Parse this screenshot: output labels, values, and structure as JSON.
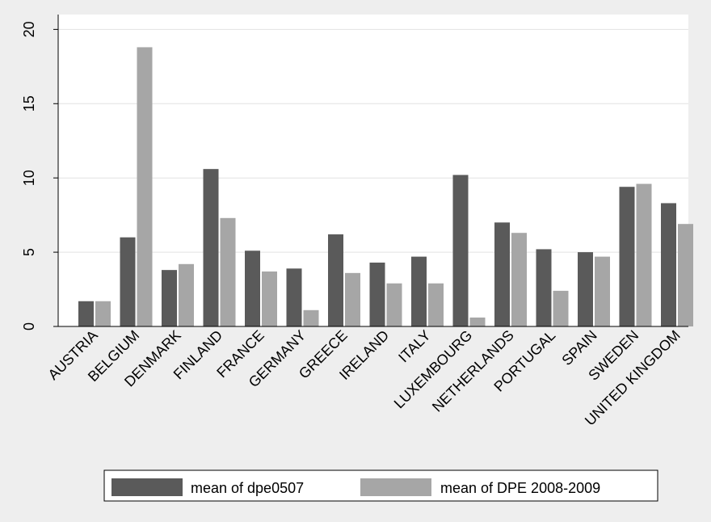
{
  "chart_data": {
    "type": "bar",
    "title": "",
    "xlabel": "",
    "ylabel": "",
    "ylim": [
      0,
      21
    ],
    "yticks": [
      0,
      5,
      10,
      15,
      20
    ],
    "grid": true,
    "legend_placement": "bottom",
    "categories": [
      "AUSTRIA",
      "BELGIUM",
      "DENMARK",
      "FINLAND",
      "FRANCE",
      "GERMANY",
      "GREECE",
      "IRELAND",
      "ITALY",
      "LUXEMBOURG",
      "NETHERLANDS",
      "PORTUGAL",
      "SPAIN",
      "SWEDEN",
      "UNITED KINGDOM"
    ],
    "series": [
      {
        "name": "mean of dpe0507",
        "color": "#5a5a5a",
        "values": [
          1.7,
          6.0,
          3.8,
          10.6,
          5.1,
          3.9,
          6.2,
          4.3,
          4.7,
          10.2,
          7.0,
          5.2,
          5.0,
          9.4,
          8.3
        ]
      },
      {
        "name": "mean of DPE 2008-2009",
        "color": "#a6a6a6",
        "values": [
          1.7,
          18.8,
          4.2,
          7.3,
          3.7,
          1.1,
          3.6,
          2.9,
          2.9,
          0.6,
          6.3,
          2.4,
          4.7,
          9.6,
          6.9
        ]
      }
    ]
  },
  "colors": {
    "background": "#eeeeee",
    "plot_background": "#ffffff",
    "gridline": "#e2e2e2",
    "axis": "#000000"
  }
}
